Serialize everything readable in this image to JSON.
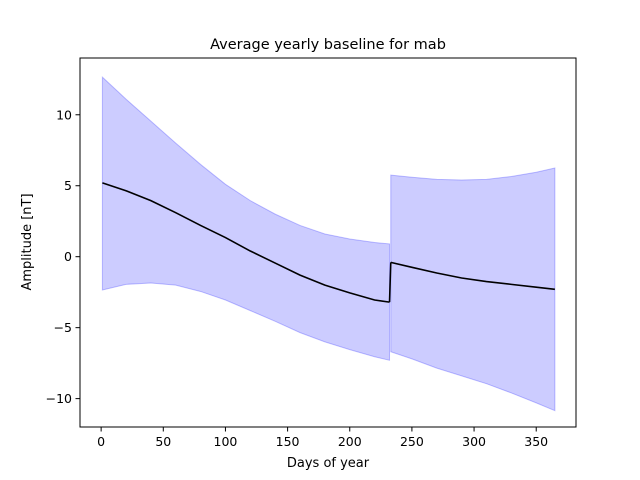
{
  "chart_data": {
    "type": "line",
    "title": "Average yearly baseline for mab",
    "xlabel": "Days of year",
    "ylabel": "Amplitude [nT]",
    "xlim": [
      -17,
      382
    ],
    "ylim": [
      -12,
      14
    ],
    "xticks": [
      0,
      50,
      100,
      150,
      200,
      250,
      300,
      350
    ],
    "yticks": [
      -10,
      -5,
      0,
      5,
      10
    ],
    "grid": false,
    "series": [
      {
        "kind": "line",
        "color": "#000000",
        "x": [
          1,
          20,
          40,
          60,
          80,
          100,
          120,
          140,
          160,
          180,
          200,
          220,
          232
        ],
        "y": [
          5.2,
          4.65,
          3.95,
          3.1,
          2.2,
          1.35,
          0.4,
          -0.45,
          -1.3,
          -2.0,
          -2.55,
          -3.05,
          -3.2
        ]
      },
      {
        "kind": "line",
        "color": "#000000",
        "x": [
          233,
          250,
          270,
          290,
          310,
          330,
          350,
          365
        ],
        "y": [
          -0.4,
          -0.75,
          -1.15,
          -1.5,
          -1.75,
          -1.95,
          -2.15,
          -2.3
        ]
      },
      {
        "kind": "band",
        "color": "#0000ff",
        "opacity": 0.2,
        "x": [
          1,
          20,
          40,
          60,
          80,
          100,
          120,
          140,
          160,
          180,
          200,
          220,
          232
        ],
        "upper": [
          12.65,
          11.1,
          9.55,
          8.0,
          6.5,
          5.1,
          3.95,
          3.0,
          2.2,
          1.6,
          1.25,
          1.0,
          0.9
        ],
        "lower": [
          -2.35,
          -1.95,
          -1.85,
          -2.0,
          -2.45,
          -3.05,
          -3.8,
          -4.55,
          -5.35,
          -6.0,
          -6.55,
          -7.05,
          -7.3
        ]
      },
      {
        "kind": "band",
        "color": "#0000ff",
        "opacity": 0.2,
        "x": [
          233,
          250,
          270,
          290,
          310,
          330,
          350,
          365
        ],
        "upper": [
          5.75,
          5.6,
          5.45,
          5.4,
          5.45,
          5.65,
          5.95,
          6.25
        ],
        "lower": [
          -6.7,
          -7.2,
          -7.85,
          -8.4,
          -8.95,
          -9.6,
          -10.3,
          -10.85
        ]
      }
    ]
  }
}
